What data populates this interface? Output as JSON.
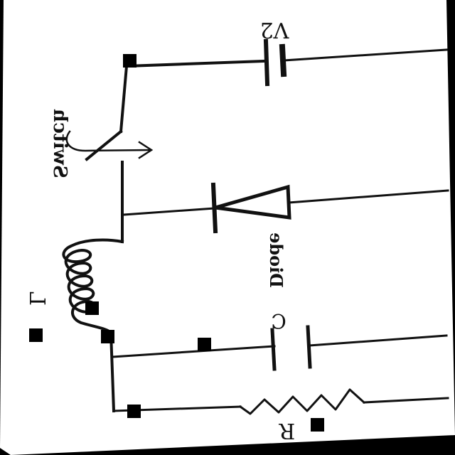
{
  "labels": {
    "v2": "V2",
    "switch": "Switch",
    "diode": "Diode",
    "inductor": "L",
    "capacitor": "C",
    "resistor": "R"
  },
  "colors": {
    "paper": "#ffffff",
    "ink": "#111111",
    "background": "#000000"
  }
}
